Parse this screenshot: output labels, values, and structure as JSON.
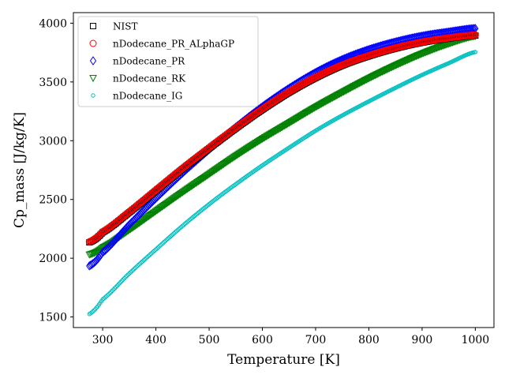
{
  "chart_data": {
    "type": "scatter",
    "xlabel": "Temperature [K]",
    "ylabel": "Cp_mass [J/kg/K]",
    "xlim": [
      245,
      1035
    ],
    "ylim": [
      1410,
      4090
    ],
    "xticks": [
      300,
      400,
      500,
      600,
      700,
      800,
      900,
      1000
    ],
    "yticks": [
      1500,
      2000,
      2500,
      3000,
      3500,
      4000
    ],
    "xtick_labels": [
      "300",
      "400",
      "500",
      "600",
      "700",
      "800",
      "900",
      "1000"
    ],
    "ytick_labels": [
      "1500",
      "2000",
      "2500",
      "3000",
      "3500",
      "4000"
    ],
    "legend_position": "upper-left",
    "grid": false,
    "x_range": [
      275,
      1000
    ],
    "series": [
      {
        "name": "NIST",
        "marker": "square",
        "color": "#000000",
        "x": [
          275,
          300,
          350,
          400,
          450,
          500,
          550,
          600,
          650,
          700,
          750,
          800,
          850,
          900,
          950,
          1000
        ],
        "y": [
          2135,
          2220,
          2390,
          2575,
          2760,
          2935,
          3105,
          3265,
          3410,
          3535,
          3640,
          3720,
          3785,
          3835,
          3870,
          3895
        ]
      },
      {
        "name": "nDodecane_PR_ALphaGP",
        "marker": "circle",
        "color": "#ff0000",
        "x": [
          275,
          300,
          350,
          400,
          450,
          500,
          550,
          600,
          650,
          700,
          750,
          800,
          850,
          900,
          950,
          1000
        ],
        "y": [
          2140,
          2225,
          2395,
          2580,
          2765,
          2940,
          3110,
          3270,
          3415,
          3540,
          3645,
          3725,
          3790,
          3840,
          3875,
          3900
        ]
      },
      {
        "name": "nDodecane_PR",
        "marker": "diamond",
        "color": "#0000ff",
        "x": [
          275,
          300,
          350,
          400,
          450,
          500,
          550,
          600,
          650,
          700,
          750,
          800,
          850,
          900,
          950,
          1000
        ],
        "y": [
          1935,
          2050,
          2285,
          2510,
          2725,
          2925,
          3115,
          3290,
          3445,
          3580,
          3690,
          3775,
          3840,
          3890,
          3925,
          3955
        ]
      },
      {
        "name": "nDodecane_RK",
        "marker": "triangle-down",
        "color": "#008000",
        "x": [
          275,
          300,
          350,
          400,
          450,
          500,
          550,
          600,
          650,
          700,
          750,
          800,
          850,
          900,
          950,
          1000
        ],
        "y": [
          2030,
          2090,
          2240,
          2400,
          2560,
          2715,
          2870,
          3015,
          3150,
          3285,
          3410,
          3530,
          3640,
          3740,
          3825,
          3890
        ]
      },
      {
        "name": "nDodecane_IG",
        "marker": "small-circle",
        "color": "#00bfbf",
        "x": [
          275,
          300,
          350,
          400,
          450,
          500,
          550,
          600,
          650,
          700,
          750,
          800,
          850,
          900,
          950,
          1000
        ],
        "y": [
          1525,
          1650,
          1870,
          2075,
          2275,
          2460,
          2630,
          2790,
          2940,
          3085,
          3215,
          3335,
          3450,
          3560,
          3660,
          3755
        ]
      }
    ]
  }
}
